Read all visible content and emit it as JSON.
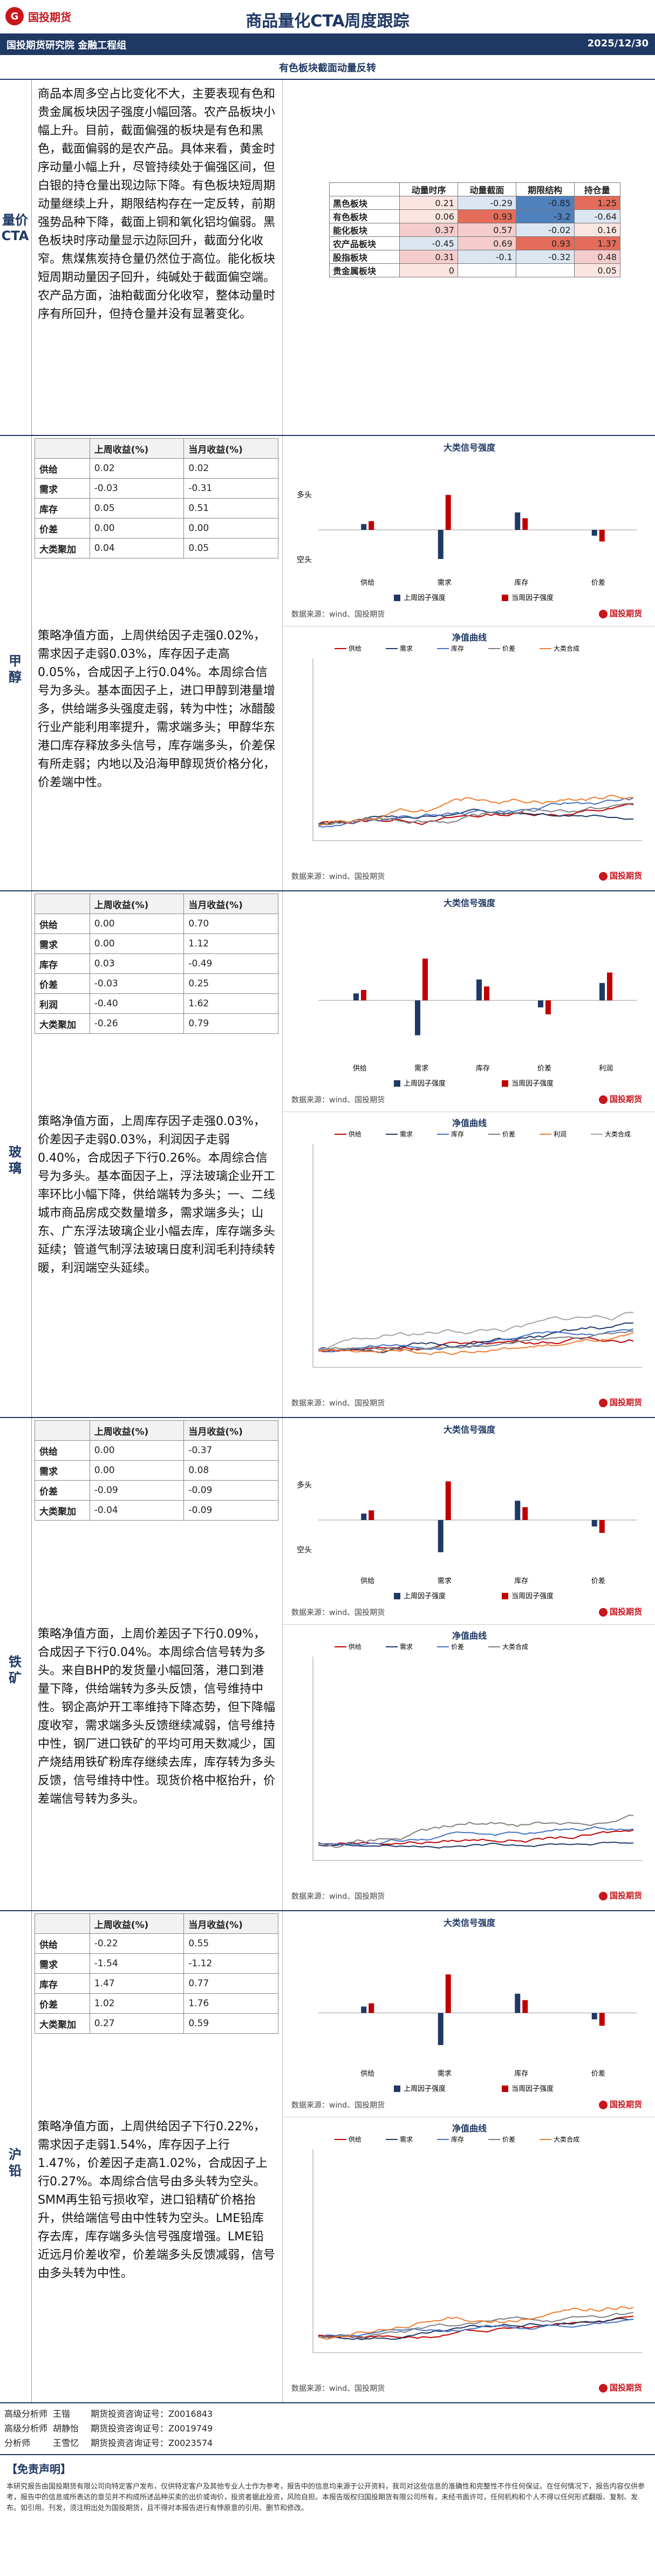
{
  "header": {
    "logo_text": "国投期货",
    "title": "商品量化CTA周度跟踪",
    "org": "国投期货研究院 金融工程组",
    "date": "2025/12/30",
    "subtitle": "有色板块截面动量反转"
  },
  "overview": {
    "label": "量价CTA",
    "text": "商品本周多空占比变化不大，主要表现有色和贵金属板块因子强度小幅回落。农产品板块小幅上升。目前，截面偏强的板块是有色和黑色，截面偏弱的是农产品。具体来看，黄金时序动量小幅上升，尽管持续处于偏强区间，但白银的持仓量出现边际下降。有色板块短周期动量继续上升，期限结构存在一定反转，前期强势品种下降，截面上铜和氧化铝均偏弱。黑色板块时序动量显示边际回升，截面分化收窄。焦煤焦炭持仓量仍然位于高位。能化板块短周期动量因子回升，纯碱处于截面偏空端。农产品方面，油粕截面分化收窄，整体动量时序有所回升，但持仓量并没有显著变化。",
    "momentum_table": {
      "columns": [
        "动量时序",
        "动量截面",
        "期限结构",
        "持仓量"
      ],
      "rows": [
        {
          "name": "黑色板块",
          "values": [
            "0.21",
            "-0.29",
            "-0.85",
            "1.25"
          ]
        },
        {
          "name": "有色板块",
          "values": [
            "0.06",
            "0.93",
            "-3.2",
            "-0.64"
          ]
        },
        {
          "name": "能化板块",
          "values": [
            "0.37",
            "0.57",
            "-0.02",
            "0.16"
          ]
        },
        {
          "name": "农产品板块",
          "values": [
            "-0.45",
            "0.69",
            "0.93",
            "1.37"
          ]
        },
        {
          "name": "股指板块",
          "values": [
            "0.31",
            "-0.1",
            "-0.32",
            "0.48"
          ]
        },
        {
          "name": "贵金属板块",
          "values": [
            "0",
            "",
            "",
            "0.05"
          ]
        }
      ]
    }
  },
  "sections": [
    {
      "label": "甲醇",
      "col1": "上周收益(%)",
      "col2": "当月收益(%)",
      "rows": [
        {
          "k": "供给",
          "a": "0.02",
          "b": "0.02"
        },
        {
          "k": "需求",
          "a": "-0.03",
          "b": "-0.31"
        },
        {
          "k": "库存",
          "a": "0.05",
          "b": "0.51"
        },
        {
          "k": "价差",
          "a": "0.00",
          "b": "0.00"
        },
        {
          "k": "大类聚加",
          "a": "0.04",
          "b": "0.05"
        }
      ],
      "text": "策略净值方面，上周供给因子走强0.02%，需求因子走弱0.03%，库存因子走高0.05%，合成因子上行0.04%。本周综合信号为多头。基本面因子上，进口甲醇到港量增多，供给端多头强度走弱，转为中性；冰醋酸行业产能利用率提升，需求端多头；甲醇华东港口库存释放多头信号，库存端多头，价差保有所走弱；内地以及沿海甲醇现货价格分化，价差端中性。",
      "signal": {
        "title": "大类信号强度",
        "up": "多头",
        "down": "空头",
        "cats": [
          "供给",
          "需求",
          "库存",
          "价差"
        ],
        "legend": [
          "上周因子强度",
          "当周因子强度"
        ]
      },
      "nav": {
        "title": "净值曲线",
        "legend": [
          "供给",
          "需求",
          "库存",
          "价差",
          "大类合成"
        ]
      },
      "source": "数据来源：wind、国投期货",
      "brand": "国投期货"
    },
    {
      "label": "玻璃",
      "col1": "上周收益(%)",
      "col2": "当月收益(%)",
      "rows": [
        {
          "k": "供给",
          "a": "0.00",
          "b": "0.70"
        },
        {
          "k": "需求",
          "a": "0.00",
          "b": "1.12"
        },
        {
          "k": "库存",
          "a": "0.03",
          "b": "-0.49"
        },
        {
          "k": "价差",
          "a": "-0.03",
          "b": "0.25"
        },
        {
          "k": "利润",
          "a": "-0.40",
          "b": "1.62"
        },
        {
          "k": "大类聚加",
          "a": "-0.26",
          "b": "0.79"
        }
      ],
      "text": "策略净值方面，上周库存因子走强0.03%，价差因子走弱0.03%，利润因子走弱0.40%，合成因子下行0.26%。本周综合信号为多头。基本面因子上，浮法玻璃企业开工率环比小幅下降，供给端转为多头；一、二线城市商品房成交数量增多，需求端多头；山东、广东浮法玻璃企业小幅去库，库存端多头延续；管道气制浮法玻璃日度利润毛利持续转暖，利润端空头延续。",
      "signal": {
        "title": "大类信号强度",
        "up": "",
        "down": "",
        "cats": [
          "供给",
          "需求",
          "库存",
          "价差",
          "利润"
        ],
        "legend": [
          "上周因子强度",
          "当周因子强度"
        ]
      },
      "nav": {
        "title": "净值曲线",
        "legend": [
          "供给",
          "需求",
          "库存",
          "价差",
          "利润",
          "大类合成"
        ]
      },
      "source": "数据来源：wind、国投期货",
      "brand": "国投期货"
    },
    {
      "label": "铁矿",
      "col1": "上周收益(%)",
      "col2": "当月收益(%)",
      "rows": [
        {
          "k": "供给",
          "a": "0.00",
          "b": "-0.37"
        },
        {
          "k": "需求",
          "a": "0.00",
          "b": "0.08"
        },
        {
          "k": "价差",
          "a": "-0.09",
          "b": "-0.09"
        },
        {
          "k": "大类聚加",
          "a": "-0.04",
          "b": "-0.09"
        }
      ],
      "text": "策略净值方面，上周价差因子下行0.09%，合成因子下行0.04%。本周综合信号转为多头。来自BHP的发货量小幅回落，港口到港量下降，供给端转为多头反馈，信号维持中性。钢企高炉开工率维持下降态势，但下降幅度收窄，需求端多头反馈继续减弱，信号维持中性，钢厂进口铁矿的平均可用天数减少，国产烧结用铁矿粉库存继续去库，库存转为多头反馈，信号维持中性。现货价格中枢抬升，价差端信号转为多头。",
      "signal": {
        "title": "大类信号强度",
        "up": "多头",
        "down": "空头",
        "cats": [
          "供给",
          "需求",
          "库存",
          "价差"
        ],
        "legend": [
          "上周因子强度",
          "当周因子强度"
        ]
      },
      "nav": {
        "title": "净值曲线",
        "legend": [
          "供给",
          "需求",
          "价差",
          "大类合成"
        ]
      },
      "source": "数据来源：wind、国投期货",
      "brand": "国投期货"
    },
    {
      "label": "沪铅",
      "col1": "上周收益(%)",
      "col2": "当月收益(%)",
      "rows": [
        {
          "k": "供给",
          "a": "-0.22",
          "b": "0.55"
        },
        {
          "k": "需求",
          "a": "-1.54",
          "b": "-1.12"
        },
        {
          "k": "库存",
          "a": "1.47",
          "b": "0.77"
        },
        {
          "k": "价差",
          "a": "1.02",
          "b": "1.76"
        },
        {
          "k": "大类聚加",
          "a": "0.27",
          "b": "0.59"
        }
      ],
      "text": "策略净值方面，上周供给因子下行0.22%，需求因子走弱1.54%，库存因子上行1.47%，价差因子走高1.02%，合成因子上行0.27%。本周综合信号由多头转为空头。SMM再生铅亏损收窄，进口铅精矿价格抬升，供给端信号由中性转为空头。LME铅库存去库，库存端多头信号强度增强。LME铅近远月价差收窄，价差端多头反馈减弱，信号由多头转为中性。",
      "signal": {
        "title": "大类信号强度",
        "up": "",
        "down": "",
        "cats": [
          "供给",
          "需求",
          "库存",
          "价差"
        ],
        "legend": [
          "上周因子强度",
          "当周因子强度"
        ]
      },
      "nav": {
        "title": "净值曲线",
        "legend": [
          "供给",
          "需求",
          "库存",
          "价差",
          "大类合成"
        ]
      },
      "source": "数据来源：wind、国投期货",
      "brand": "国投期货"
    }
  ],
  "analysts": [
    {
      "role": "高级分析师",
      "name": "王锴",
      "cert_label": "期货投资咨询证号：",
      "cert": "Z0016843"
    },
    {
      "role": "高级分析师",
      "name": "胡静怡",
      "cert_label": "期货投资咨询证号：",
      "cert": "Z0019749"
    },
    {
      "role": "分析师",
      "name": "王雪忆",
      "cert_label": "期货投资咨询证号：",
      "cert": "Z0023574"
    }
  ],
  "disclaimer": {
    "title": "【免责声明】",
    "text": "本研究报告由国投期货有限公司向特定客户发布，仅供特定客户及其他专业人士作为参考，报告中的信息均来源于公开资料，我司对这些信息的准确性和完整性不作任何保证。在任何情况下，报告内容仅供参考，报告中的信息或所表达的意见并不构成所述品种买卖的出价或询价，投资者据此投资，风险自担。本报告版权归国投期货有限公司所有，未经书面许可，任何机构和个人不得以任何形式翻版、复制、发布。如引用、刊发，须注明出处为国投期货，且不得对本报告进行有悖原意的引用、删节和修改。"
  }
}
